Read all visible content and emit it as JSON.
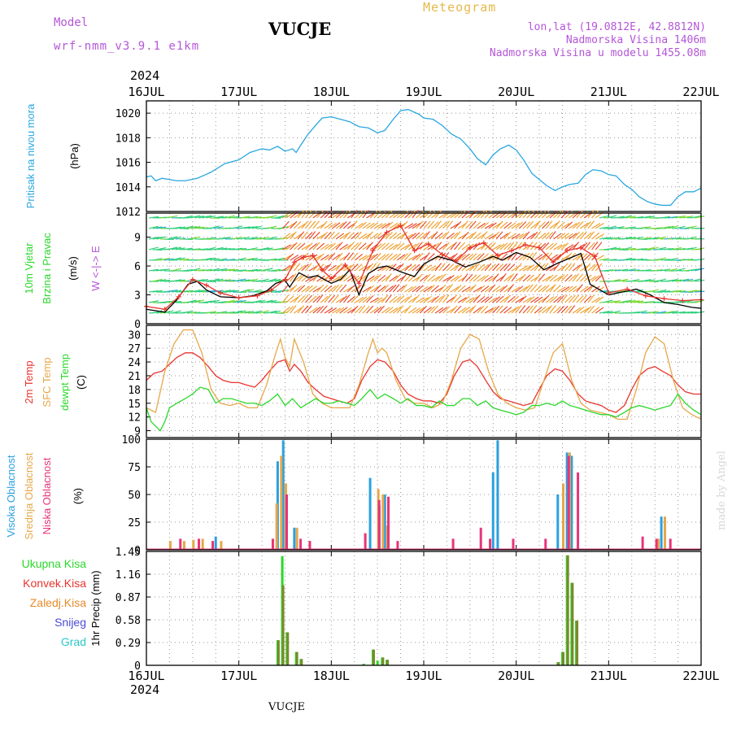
{
  "header": {
    "model_label": "Model",
    "model_version": "wrf-nmm_v3.9.1  e1km",
    "station": "VUCJE",
    "meteogram": "Meteogram",
    "lonlat": "lon,lat (19.0812E, 42.8812N)",
    "elevation": "Nadmorska Visina 1406m",
    "model_elevation": "Nadmorska Visina u modelu 1455.08m",
    "year_top": "2024",
    "year_bottom": "2024",
    "footer_station": "VUCJE",
    "credit": "made by Angel"
  },
  "chart_data": [
    {
      "type": "line",
      "id": "pressure",
      "ylabel": "Pritisak na nivou mora",
      "yunit": "(hPa)",
      "ylim": [
        1012,
        1021
      ],
      "yticks": [
        1012,
        1014,
        1016,
        1018,
        1020
      ],
      "grid": true,
      "x_days": [
        "16JUL",
        "17JUL",
        "18JUL",
        "19JUL",
        "20JUL",
        "21JUL",
        "22JUL"
      ],
      "series": [
        {
          "color": "#2aa7e0",
          "x": [
            0,
            0.05,
            0.1,
            0.17,
            0.25,
            0.33,
            0.42,
            0.55,
            0.7,
            0.85,
            1.0,
            1.12,
            1.25,
            1.33,
            1.42,
            1.5,
            1.58,
            1.62,
            1.67,
            1.75,
            1.83,
            1.9,
            2.0,
            2.1,
            2.2,
            2.3,
            2.4,
            2.5,
            2.58,
            2.67,
            2.75,
            2.83,
            2.95,
            3.0,
            3.1,
            3.2,
            3.3,
            3.4,
            3.5,
            3.58,
            3.67,
            3.75,
            3.83,
            3.92,
            4.0,
            4.08,
            4.17,
            4.25,
            4.33,
            4.42,
            4.5,
            4.58,
            4.67,
            4.75,
            4.83,
            4.92,
            5.0,
            5.08,
            5.17,
            5.25,
            5.33,
            5.42,
            5.5,
            5.58,
            5.67,
            5.75,
            5.83,
            5.92,
            6.0
          ],
          "y": [
            1014.8,
            1014.9,
            1014.5,
            1014.7,
            1014.6,
            1014.5,
            1014.5,
            1014.7,
            1015.2,
            1015.9,
            1016.2,
            1016.8,
            1017.1,
            1017.0,
            1017.3,
            1016.9,
            1017.1,
            1016.8,
            1017.4,
            1018.3,
            1019.0,
            1019.6,
            1019.7,
            1019.5,
            1019.3,
            1018.9,
            1018.8,
            1018.4,
            1018.6,
            1019.5,
            1020.2,
            1020.3,
            1019.9,
            1019.6,
            1019.5,
            1019.0,
            1018.3,
            1017.9,
            1017.1,
            1016.3,
            1015.8,
            1016.6,
            1017.1,
            1017.4,
            1017.0,
            1016.2,
            1015.1,
            1014.6,
            1014.1,
            1013.7,
            1014.0,
            1014.2,
            1014.3,
            1015.0,
            1015.4,
            1015.3,
            1015.0,
            1014.9,
            1014.2,
            1013.8,
            1013.2,
            1012.8,
            1012.6,
            1012.5,
            1012.5,
            1013.2,
            1013.6,
            1013.6,
            1013.9
          ]
        }
      ]
    },
    {
      "type": "line",
      "id": "wind",
      "ylabel": "10m Vjetar Brzina i Pravac",
      "yunit": "(m/s)",
      "compass": "W <-|-> E",
      "ylim": [
        0,
        11.5
      ],
      "yticks": [
        0,
        3,
        6,
        9
      ],
      "grid": true,
      "series": [
        {
          "name": "speed",
          "color": "#000000",
          "x": [
            0,
            0.2,
            0.33,
            0.45,
            0.55,
            0.65,
            0.8,
            1.0,
            1.15,
            1.3,
            1.4,
            1.5,
            1.55,
            1.65,
            1.75,
            1.85,
            2.0,
            2.1,
            2.2,
            2.3,
            2.4,
            2.5,
            2.6,
            2.75,
            2.9,
            3.0,
            3.15,
            3.3,
            3.45,
            3.6,
            3.75,
            3.85,
            4.0,
            4.15,
            4.3,
            4.45,
            4.6,
            4.7,
            4.8,
            5.0,
            5.15,
            5.3,
            5.45,
            5.6,
            5.75,
            5.9,
            6.0
          ],
          "y": [
            1.5,
            1.2,
            2.5,
            4.1,
            4.4,
            3.5,
            2.8,
            2.7,
            2.9,
            3.4,
            4.2,
            4.5,
            3.8,
            5.3,
            4.8,
            5.0,
            4.2,
            4.6,
            5.6,
            3.0,
            5.2,
            5.8,
            6.0,
            5.4,
            4.9,
            6.2,
            7.0,
            6.6,
            5.9,
            6.4,
            7.0,
            6.6,
            7.4,
            6.9,
            5.6,
            6.3,
            6.9,
            7.3,
            4.1,
            3.0,
            3.3,
            3.6,
            3.0,
            2.2,
            2.0,
            1.7,
            1.6
          ]
        },
        {
          "name": "gust",
          "color": "#e8342e",
          "x": [
            0,
            0.2,
            0.35,
            0.5,
            0.65,
            0.8,
            1.0,
            1.2,
            1.35,
            1.5,
            1.6,
            1.7,
            1.8,
            1.9,
            2.0,
            2.15,
            2.3,
            2.45,
            2.6,
            2.75,
            2.9,
            3.05,
            3.2,
            3.35,
            3.5,
            3.65,
            3.8,
            3.95,
            4.1,
            4.25,
            4.4,
            4.55,
            4.7,
            4.85,
            5.0,
            5.2,
            5.4,
            5.6,
            5.8,
            6.0
          ],
          "y": [
            1.8,
            1.5,
            2.8,
            4.6,
            4.0,
            3.2,
            2.7,
            2.9,
            3.5,
            4.6,
            6.4,
            6.9,
            7.1,
            5.6,
            4.7,
            6.1,
            4.2,
            7.6,
            9.5,
            10.2,
            7.6,
            8.3,
            7.2,
            6.5,
            7.9,
            8.4,
            7.1,
            7.6,
            8.2,
            7.9,
            6.4,
            7.6,
            7.9,
            7.0,
            3.2,
            3.6,
            2.9,
            2.6,
            2.4,
            2.5
          ]
        }
      ],
      "barb_colors": [
        "#1e3cd6",
        "#2fa9e0",
        "#2fd07a",
        "#7ad830",
        "#e8e04a",
        "#f0a030",
        "#e84a2e",
        "#d83ad8"
      ]
    },
    {
      "type": "line",
      "id": "temp",
      "ylabels": [
        "2m Temp",
        "SFC Temp",
        "dewpt Temp"
      ],
      "yunit": "(C)",
      "ylim": [
        7.5,
        32
      ],
      "yticks": [
        9,
        12,
        15,
        18,
        21,
        24,
        27,
        30
      ],
      "grid": true,
      "series": [
        {
          "name": "2m Temp",
          "color": "#e8342e",
          "x": [
            0,
            0.08,
            0.17,
            0.25,
            0.33,
            0.42,
            0.5,
            0.58,
            0.67,
            0.75,
            0.83,
            0.92,
            1.0,
            1.08,
            1.17,
            1.25,
            1.33,
            1.42,
            1.5,
            1.55,
            1.6,
            1.67,
            1.75,
            1.83,
            1.92,
            2.0,
            2.08,
            2.17,
            2.25,
            2.33,
            2.42,
            2.5,
            2.58,
            2.67,
            2.75,
            2.83,
            2.92,
            3.0,
            3.08,
            3.17,
            3.25,
            3.33,
            3.42,
            3.5,
            3.58,
            3.67,
            3.75,
            3.83,
            3.92,
            4.0,
            4.08,
            4.17,
            4.25,
            4.33,
            4.42,
            4.5,
            4.58,
            4.67,
            4.75,
            4.83,
            4.92,
            5.0,
            5.08,
            5.17,
            5.25,
            5.33,
            5.42,
            5.5,
            5.58,
            5.67,
            5.75,
            5.83,
            5.92,
            6.0
          ],
          "y": [
            20,
            21.5,
            22,
            23.5,
            25,
            26,
            26,
            25,
            23,
            21,
            20,
            19.5,
            19.5,
            19,
            18.5,
            20,
            22,
            24,
            24.5,
            22,
            23.5,
            22,
            19.5,
            18,
            16.5,
            16,
            15.5,
            15,
            16,
            20,
            23,
            24.5,
            24,
            22,
            19,
            17,
            16,
            15.5,
            15.5,
            15,
            17,
            21,
            24,
            24.5,
            23,
            20,
            17.5,
            16,
            15.5,
            15,
            14.5,
            15,
            18,
            21,
            22.5,
            22,
            20,
            17,
            15.5,
            15,
            14.5,
            13.5,
            13,
            14.5,
            18,
            21,
            22.5,
            23,
            22,
            21,
            19,
            17.5,
            17,
            17
          ]
        },
        {
          "name": "SFC Temp",
          "color": "#e6a84a",
          "x": [
            0,
            0.1,
            0.2,
            0.3,
            0.4,
            0.5,
            0.6,
            0.7,
            0.8,
            0.9,
            1.0,
            1.1,
            1.2,
            1.3,
            1.4,
            1.45,
            1.5,
            1.55,
            1.6,
            1.7,
            1.8,
            1.9,
            2.0,
            2.1,
            2.2,
            2.3,
            2.4,
            2.45,
            2.5,
            2.55,
            2.6,
            2.7,
            2.8,
            2.9,
            3.0,
            3.1,
            3.2,
            3.3,
            3.4,
            3.5,
            3.6,
            3.7,
            3.8,
            3.9,
            4.0,
            4.1,
            4.2,
            4.3,
            4.4,
            4.5,
            4.6,
            4.7,
            4.8,
            4.9,
            5.0,
            5.1,
            5.2,
            5.3,
            5.4,
            5.5,
            5.6,
            5.7,
            5.8,
            5.9,
            6.0
          ],
          "y": [
            14,
            13,
            22,
            28,
            31,
            31,
            26,
            18,
            15,
            14.5,
            15,
            14,
            14,
            19,
            26,
            29,
            25,
            23,
            29,
            24,
            17,
            15,
            14,
            14,
            14,
            19,
            26,
            29,
            26,
            27,
            26,
            20,
            16,
            15,
            15,
            14,
            15,
            20,
            27,
            30,
            29,
            22,
            17,
            15,
            14,
            13.5,
            14,
            20,
            26,
            28,
            20,
            15,
            13.5,
            13,
            12.5,
            11.5,
            11.5,
            18,
            26,
            29.5,
            28,
            20,
            14,
            12.5,
            11.5
          ]
        },
        {
          "name": "dewpt Temp",
          "color": "#2ad82a",
          "x": [
            0,
            0.05,
            0.1,
            0.15,
            0.2,
            0.25,
            0.33,
            0.42,
            0.5,
            0.58,
            0.67,
            0.75,
            0.83,
            0.92,
            1.0,
            1.08,
            1.17,
            1.25,
            1.33,
            1.42,
            1.5,
            1.58,
            1.67,
            1.75,
            1.83,
            1.92,
            2.0,
            2.08,
            2.17,
            2.25,
            2.33,
            2.42,
            2.5,
            2.58,
            2.67,
            2.75,
            2.83,
            2.92,
            3.0,
            3.08,
            3.17,
            3.25,
            3.33,
            3.42,
            3.5,
            3.58,
            3.67,
            3.75,
            3.83,
            3.92,
            4.0,
            4.08,
            4.17,
            4.25,
            4.33,
            4.42,
            4.5,
            4.58,
            4.67,
            4.75,
            4.83,
            4.92,
            5.0,
            5.08,
            5.17,
            5.25,
            5.33,
            5.42,
            5.5,
            5.58,
            5.67,
            5.75,
            5.83,
            5.92,
            6.0
          ],
          "y": [
            14,
            11,
            10,
            9,
            11,
            14,
            15,
            16,
            17,
            18.5,
            18,
            15,
            16,
            16,
            15.5,
            15,
            15,
            14.5,
            15.5,
            17,
            14.5,
            16,
            14,
            15,
            16,
            15,
            15,
            15.5,
            15,
            14.5,
            16,
            18,
            16,
            17,
            16,
            15,
            16,
            14.5,
            14.5,
            14,
            15.5,
            14.5,
            14.5,
            16,
            16,
            14.5,
            15.5,
            14,
            13.5,
            13,
            12.5,
            13,
            14.5,
            14.5,
            15,
            14.5,
            15.5,
            14.5,
            14,
            13.5,
            13,
            12.5,
            12.5,
            12,
            13,
            14,
            14.5,
            14,
            13.5,
            14,
            14.5,
            17,
            15,
            13.5,
            12.5
          ]
        }
      ]
    },
    {
      "type": "bar",
      "id": "clouds",
      "ylabels": [
        "Visoka Oblacnost",
        "Srednja Oblacnost",
        "Niska Oblacnost"
      ],
      "yunit": "(%)",
      "ylim": [
        0,
        100
      ],
      "yticks": [
        0,
        25,
        50,
        75,
        100
      ],
      "grid": true,
      "series": [
        {
          "name": "Visoka Oblacnost",
          "color": "#2aa0e0",
          "x": [
            0.75,
            1.42,
            1.48,
            1.6,
            2.42,
            2.52,
            2.58,
            3.75,
            3.8,
            4.45,
            4.55,
            4.6,
            5.57
          ],
          "y": [
            12,
            80,
            99,
            20,
            65,
            40,
            50,
            70,
            99,
            50,
            88,
            85,
            30
          ]
        },
        {
          "name": "Srednja Oblacnost",
          "color": "#e6a84a",
          "x": [
            0.25,
            0.4,
            0.5,
            0.6,
            0.8,
            1.4,
            1.45,
            1.5,
            1.62,
            2.5,
            2.55,
            2.6,
            4.5,
            4.57,
            5.53,
            5.6
          ],
          "y": [
            8,
            8,
            9,
            10,
            8,
            42,
            85,
            60,
            20,
            55,
            50,
            22,
            60,
            88,
            10,
            30
          ]
        },
        {
          "name": "Niska Oblacnost",
          "color": "#e8347a",
          "x": [
            0.35,
            0.55,
            0.7,
            1.35,
            1.5,
            1.65,
            1.75,
            2.35,
            2.5,
            2.6,
            2.7,
            3.3,
            3.6,
            3.7,
            3.95,
            4.3,
            4.55,
            4.65,
            5.35,
            5.5,
            5.65
          ],
          "y": [
            10,
            10,
            8,
            10,
            50,
            10,
            8,
            15,
            45,
            48,
            8,
            10,
            20,
            10,
            10,
            10,
            85,
            70,
            12,
            10,
            10
          ]
        }
      ]
    },
    {
      "type": "bar",
      "id": "precip",
      "ylabels": [
        "Ukupna Kisa",
        "Konvek.Kisa",
        "Zaledj.Kisa",
        "Snijeg",
        "Grad"
      ],
      "ylabel_axis": "1hr Precip",
      "yunit": "(mm)",
      "ylim": [
        0,
        1.45
      ],
      "yticks": [
        0,
        0.29,
        0.58,
        0.87,
        1.16,
        1.45
      ],
      "grid": true,
      "legend_colors": [
        "#2ad82a",
        "#e8342e",
        "#e88a2a",
        "#4a4ad8",
        "#2ac8c8"
      ],
      "series": [
        {
          "name": "Ukupna Kisa",
          "color": "#2ad82a",
          "x": [
            1.42,
            1.47,
            1.52,
            1.62,
            1.67,
            2.35,
            2.45,
            2.5,
            2.55,
            2.6,
            4.45,
            4.5,
            4.55,
            4.6,
            4.65
          ],
          "y": [
            0.32,
            1.39,
            0.42,
            0.17,
            0.08,
            0.02,
            0.2,
            0.06,
            0.1,
            0.07,
            0.04,
            0.17,
            1.4,
            1.05,
            0.57
          ]
        },
        {
          "name": "Konvek.Kisa",
          "color": "#7a8a2a",
          "x": [
            1.42,
            1.47,
            1.52,
            1.62,
            1.67,
            2.45,
            2.55,
            2.6,
            4.45,
            4.5,
            4.55,
            4.6,
            4.65
          ],
          "y": [
            0.32,
            1.02,
            0.42,
            0.17,
            0.08,
            0.2,
            0.1,
            0.07,
            0.04,
            0.17,
            1.4,
            1.05,
            0.57
          ]
        }
      ]
    }
  ]
}
